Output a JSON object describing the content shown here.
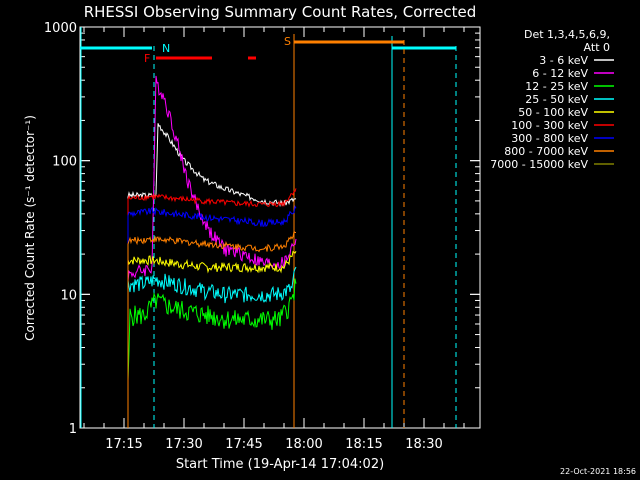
{
  "chart_data": {
    "type": "line",
    "title": "RHESSI Observing Summary Count Rates, Corrected",
    "xlabel": "Start Time (19-Apr-14 17:04:02)",
    "ylabel": "Corrected Count Rate (s⁻¹ detector⁻¹)",
    "yscale": "log",
    "ylim": [
      1,
      1000
    ],
    "xlim": [
      "17:04",
      "18:44"
    ],
    "x_ticks": [
      "17:15",
      "17:30",
      "17:45",
      "18:00",
      "18:15",
      "18:30"
    ],
    "y_ticks": [
      "1",
      "10",
      "100",
      "1000"
    ],
    "legend": {
      "position": "top-right",
      "header": [
        "Det 1,3,4,5,6,9,",
        "Att 0"
      ]
    },
    "footer_timestamp": "22-Oct-2021 18:56",
    "series": [
      {
        "name": "3 - 6 keV",
        "color": "#ffffff",
        "points": [
          [
            "17:16",
            55
          ],
          [
            "17:23",
            55
          ],
          [
            "17:23.5",
            190
          ],
          [
            "17:26",
            150
          ],
          [
            "17:30",
            100
          ],
          [
            "17:35",
            72
          ],
          [
            "17:40",
            62
          ],
          [
            "17:45",
            55
          ],
          [
            "17:50",
            50
          ],
          [
            "17:55",
            48
          ],
          [
            "17:58",
            52
          ]
        ]
      },
      {
        "name": "6 - 12 keV",
        "color": "#ff00ff",
        "points": [
          [
            "17:16",
            14
          ],
          [
            "17:22",
            16
          ],
          [
            "17:23",
            390
          ],
          [
            "17:25",
            300
          ],
          [
            "17:28",
            150
          ],
          [
            "17:31",
            70
          ],
          [
            "17:34",
            40
          ],
          [
            "17:37",
            28
          ],
          [
            "17:40",
            22
          ],
          [
            "17:45",
            20
          ],
          [
            "17:50",
            17
          ],
          [
            "17:55",
            17
          ],
          [
            "17:58",
            26
          ]
        ]
      },
      {
        "name": "12 - 25 keV",
        "color": "#00ff00",
        "points": [
          [
            "17:16",
            2
          ],
          [
            "17:16.5",
            7
          ],
          [
            "17:20",
            7
          ],
          [
            "17:23",
            9
          ],
          [
            "17:27",
            8
          ],
          [
            "17:31",
            7.5
          ],
          [
            "17:36",
            7
          ],
          [
            "17:42",
            6.5
          ],
          [
            "17:48",
            6.5
          ],
          [
            "17:54",
            6.5
          ],
          [
            "17:57",
            9
          ],
          [
            "17:58",
            12
          ]
        ]
      },
      {
        "name": "25 - 50 keV",
        "color": "#00ffff",
        "points": [
          [
            "17:16",
            12
          ],
          [
            "17:20",
            12
          ],
          [
            "17:23",
            13
          ],
          [
            "17:28",
            12
          ],
          [
            "17:33",
            11
          ],
          [
            "17:40",
            10
          ],
          [
            "17:47",
            10
          ],
          [
            "17:53",
            10
          ],
          [
            "17:57",
            11
          ],
          [
            "17:58",
            16
          ]
        ]
      },
      {
        "name": "50 - 100 keV",
        "color": "#ffff00",
        "points": [
          [
            "17:16",
            18
          ],
          [
            "17:22",
            18
          ],
          [
            "17:28",
            17
          ],
          [
            "17:35",
            16
          ],
          [
            "17:42",
            16
          ],
          [
            "17:50",
            16
          ],
          [
            "17:55",
            16
          ],
          [
            "17:58",
            21
          ]
        ]
      },
      {
        "name": "100 - 300 keV",
        "color": "#ff0000",
        "points": [
          [
            "17:16",
            52
          ],
          [
            "17:22",
            54
          ],
          [
            "17:28",
            52
          ],
          [
            "17:35",
            50
          ],
          [
            "17:42",
            48
          ],
          [
            "17:50",
            47
          ],
          [
            "17:55",
            48
          ],
          [
            "17:58",
            62
          ]
        ]
      },
      {
        "name": "300 - 800 keV",
        "color": "#0000ff",
        "points": [
          [
            "17:16",
            40
          ],
          [
            "17:22",
            42
          ],
          [
            "17:28",
            40
          ],
          [
            "17:35",
            38
          ],
          [
            "17:42",
            36
          ],
          [
            "17:50",
            34
          ],
          [
            "17:55",
            35
          ],
          [
            "17:58",
            44
          ]
        ]
      },
      {
        "name": "800 - 7000 keV",
        "color": "#ff8000",
        "points": [
          [
            "17:16",
            25
          ],
          [
            "17:22",
            26
          ],
          [
            "17:28",
            25
          ],
          [
            "17:35",
            24
          ],
          [
            "17:42",
            23
          ],
          [
            "17:50",
            22
          ],
          [
            "17:55",
            23
          ],
          [
            "17:58",
            29
          ]
        ]
      },
      {
        "name": "7000 - 15000 keV",
        "color": "#808000",
        "points": []
      }
    ],
    "annotations": [
      {
        "label": "N",
        "color": "#00ffff"
      },
      {
        "label": "F",
        "color": "#ff0000"
      },
      {
        "label": "S",
        "color": "#ff8000"
      }
    ],
    "colors": {
      "background": "#000000",
      "axes": "#ffffff",
      "night": "#00ffff",
      "flare": "#ff0000",
      "saa": "#ff8000"
    }
  }
}
